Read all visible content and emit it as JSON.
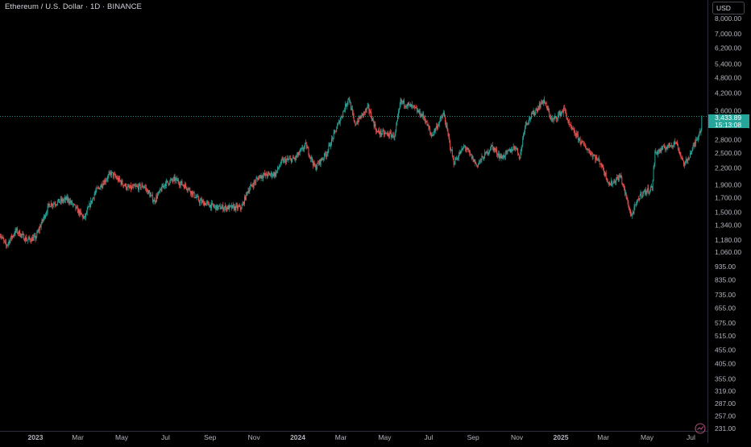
{
  "header": {
    "title": "Ethereum / U.S. Dollar · 1D · BINANCE"
  },
  "axis": {
    "currency_label": "USD"
  },
  "last_price": {
    "price": "3,433.89",
    "countdown": "15:13:08"
  },
  "colors": {
    "up": "#26a69a",
    "down": "#ef5350",
    "background": "#000000",
    "grid_text": "#b2b5be",
    "last_price_line": "#26a69a"
  },
  "icons": {
    "settings": "scale-settings-icon"
  },
  "chart_data": {
    "type": "candlestick",
    "y_scale": "log",
    "ylim": [
      231,
      9000
    ],
    "xlim": [
      "2022-11-12",
      "2025-07-16"
    ],
    "y_ticks": [
      {
        "label": "8,000.00",
        "value": 8000
      },
      {
        "label": "7,000.00",
        "value": 7000
      },
      {
        "label": "6,200.00",
        "value": 6200
      },
      {
        "label": "5,400.00",
        "value": 5400
      },
      {
        "label": "4,800.00",
        "value": 4800
      },
      {
        "label": "4,200.00",
        "value": 4200
      },
      {
        "label": "3,600.00",
        "value": 3600
      },
      {
        "label": "2,800.00",
        "value": 2800
      },
      {
        "label": "2,500.00",
        "value": 2500
      },
      {
        "label": "2,200.00",
        "value": 2200
      },
      {
        "label": "1,900.00",
        "value": 1900
      },
      {
        "label": "1,700.00",
        "value": 1700
      },
      {
        "label": "1,500.00",
        "value": 1500
      },
      {
        "label": "1,340.00",
        "value": 1340
      },
      {
        "label": "1,180.00",
        "value": 1180
      },
      {
        "label": "1,060.00",
        "value": 1060
      },
      {
        "label": "935.00",
        "value": 935
      },
      {
        "label": "835.00",
        "value": 835
      },
      {
        "label": "735.00",
        "value": 735
      },
      {
        "label": "655.00",
        "value": 655
      },
      {
        "label": "575.00",
        "value": 575
      },
      {
        "label": "515.00",
        "value": 515
      },
      {
        "label": "455.00",
        "value": 455
      },
      {
        "label": "405.00",
        "value": 405
      },
      {
        "label": "355.00",
        "value": 355
      },
      {
        "label": "319.00",
        "value": 319
      },
      {
        "label": "287.00",
        "value": 287
      },
      {
        "label": "257.00",
        "value": 257
      },
      {
        "label": "231.00",
        "value": 231
      }
    ],
    "x_ticks": [
      {
        "label": "2023",
        "date": "2023-01-01",
        "bold": true
      },
      {
        "label": "Mar",
        "date": "2023-03-01"
      },
      {
        "label": "May",
        "date": "2023-05-01"
      },
      {
        "label": "Jul",
        "date": "2023-07-01"
      },
      {
        "label": "Sep",
        "date": "2023-09-01"
      },
      {
        "label": "Nov",
        "date": "2023-11-01"
      },
      {
        "label": "2024",
        "date": "2024-01-01",
        "bold": true
      },
      {
        "label": "Mar",
        "date": "2024-03-01"
      },
      {
        "label": "May",
        "date": "2024-05-01"
      },
      {
        "label": "Jul",
        "date": "2024-07-01"
      },
      {
        "label": "Sep",
        "date": "2024-09-01"
      },
      {
        "label": "Nov",
        "date": "2024-11-01"
      },
      {
        "label": "2025",
        "date": "2025-01-01",
        "bold": true
      },
      {
        "label": "Mar",
        "date": "2025-03-01"
      },
      {
        "label": "May",
        "date": "2025-05-01"
      },
      {
        "label": "Jul",
        "date": "2025-07-01"
      }
    ],
    "path": [
      [
        "2022-11-12",
        1250
      ],
      [
        "2022-11-21",
        1120
      ],
      [
        "2022-12-05",
        1280
      ],
      [
        "2022-12-20",
        1180
      ],
      [
        "2023-01-01",
        1200
      ],
      [
        "2023-01-20",
        1600
      ],
      [
        "2023-02-15",
        1680
      ],
      [
        "2023-03-10",
        1420
      ],
      [
        "2023-03-25",
        1780
      ],
      [
        "2023-04-16",
        2100
      ],
      [
        "2023-05-10",
        1840
      ],
      [
        "2023-06-01",
        1880
      ],
      [
        "2023-06-15",
        1650
      ],
      [
        "2023-06-30",
        1920
      ],
      [
        "2023-07-14",
        1990
      ],
      [
        "2023-08-01",
        1850
      ],
      [
        "2023-08-17",
        1650
      ],
      [
        "2023-09-10",
        1560
      ],
      [
        "2023-10-15",
        1560
      ],
      [
        "2023-10-23",
        1800
      ],
      [
        "2023-11-09",
        2050
      ],
      [
        "2023-12-01",
        2090
      ],
      [
        "2023-12-10",
        2330
      ],
      [
        "2023-12-28",
        2380
      ],
      [
        "2024-01-12",
        2680
      ],
      [
        "2024-01-25",
        2200
      ],
      [
        "2024-02-10",
        2500
      ],
      [
        "2024-03-01",
        3400
      ],
      [
        "2024-03-12",
        4050
      ],
      [
        "2024-03-20",
        3200
      ],
      [
        "2024-04-08",
        3700
      ],
      [
        "2024-04-20",
        3000
      ],
      [
        "2024-05-15",
        2900
      ],
      [
        "2024-05-23",
        3900
      ],
      [
        "2024-06-10",
        3700
      ],
      [
        "2024-06-25",
        3400
      ],
      [
        "2024-07-05",
        2900
      ],
      [
        "2024-07-22",
        3500
      ],
      [
        "2024-08-05",
        2300
      ],
      [
        "2024-08-20",
        2650
      ],
      [
        "2024-09-06",
        2250
      ],
      [
        "2024-09-27",
        2650
      ],
      [
        "2024-10-10",
        2400
      ],
      [
        "2024-10-30",
        2650
      ],
      [
        "2024-11-05",
        2400
      ],
      [
        "2024-11-12",
        3200
      ],
      [
        "2024-12-08",
        3950
      ],
      [
        "2024-12-20",
        3300
      ],
      [
        "2025-01-06",
        3650
      ],
      [
        "2025-01-13",
        3150
      ],
      [
        "2025-02-03",
        2650
      ],
      [
        "2025-02-25",
        2300
      ],
      [
        "2025-03-10",
        1900
      ],
      [
        "2025-03-25",
        2050
      ],
      [
        "2025-04-09",
        1450
      ],
      [
        "2025-04-22",
        1750
      ],
      [
        "2025-05-08",
        1850
      ],
      [
        "2025-05-12",
        2500
      ],
      [
        "2025-06-10",
        2750
      ],
      [
        "2025-06-22",
        2250
      ],
      [
        "2025-07-03",
        2580
      ],
      [
        "2025-07-15",
        3100
      ],
      [
        "2025-07-16",
        3433.89
      ]
    ],
    "last_price_value": 3433.89
  }
}
